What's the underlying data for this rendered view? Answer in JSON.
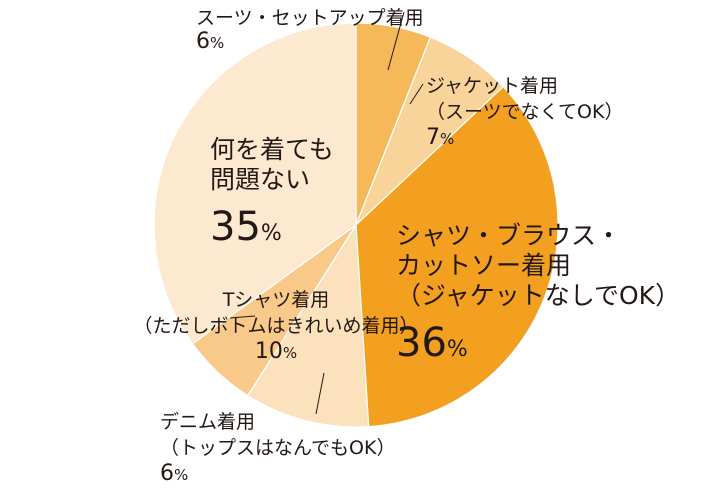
{
  "chart_data": {
    "type": "pie",
    "title": "",
    "unit": "%",
    "slices": [
      {
        "lines": [
          "スーツ・セットアップ着用"
        ],
        "value": 6,
        "color": "#F6B95A"
      },
      {
        "lines": [
          "ジャケット着用",
          "（スーツでなくてOK）"
        ],
        "value": 7,
        "color": "#F9D49A"
      },
      {
        "lines": [
          "シャツ・ブラウス・",
          "カットソー着用",
          "（ジャケットなしでOK）"
        ],
        "value": 36,
        "color": "#F3A020"
      },
      {
        "lines": [
          "Tシャツ着用",
          "（ただしボトムはきれいめ着用）"
        ],
        "value": 10,
        "color": "#FCE2BC"
      },
      {
        "lines": [
          "デニム着用",
          "（トップスはなんでもOK）"
        ],
        "value": 6,
        "color": "#F8C989"
      },
      {
        "lines": [
          "何を着ても",
          "問題ない"
        ],
        "value": 35,
        "color": "#FDE9D0"
      }
    ]
  }
}
